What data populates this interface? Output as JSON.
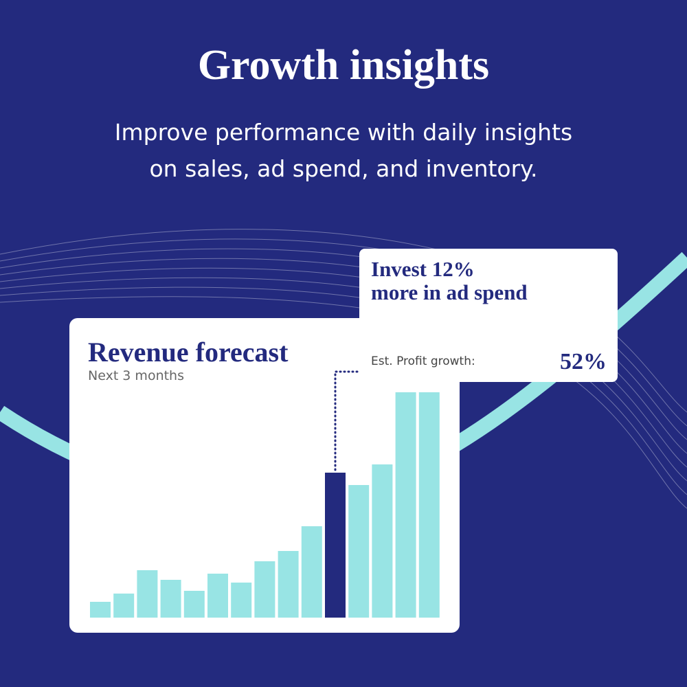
{
  "header": {
    "title": "Growth insights",
    "subtitle": [
      "Improve performance with daily insights",
      "on sales, ad spend, and inventory."
    ]
  },
  "card": {
    "title": "Revenue forecast",
    "subtitle": "Next 3 months"
  },
  "chart_data": {
    "type": "bar",
    "values": [
      23,
      35,
      69,
      55,
      39,
      64,
      51,
      82,
      97,
      133,
      211,
      193,
      223,
      328,
      328
    ],
    "colors": [
      "#98e4e4",
      "#98e4e4",
      "#98e4e4",
      "#98e4e4",
      "#98e4e4",
      "#98e4e4",
      "#98e4e4",
      "#98e4e4",
      "#98e4e4",
      "#98e4e4",
      "#232a7e",
      "#98e4e4",
      "#98e4e4",
      "#98e4e4",
      "#98e4e4"
    ]
  },
  "callout": {
    "title": [
      "Invest 12%",
      "more in ad spend"
    ],
    "label": "Est. Profit growth:",
    "value": "52%"
  }
}
